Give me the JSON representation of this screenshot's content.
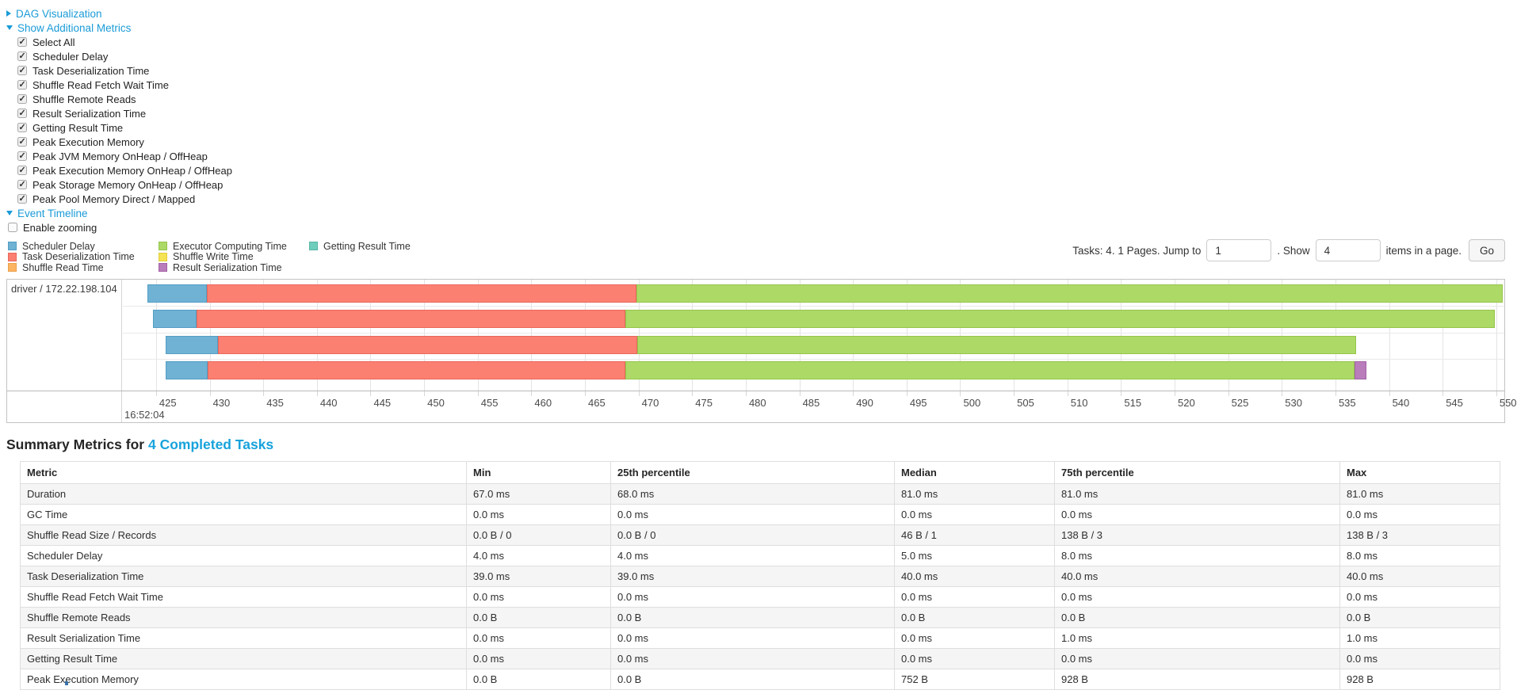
{
  "sections": {
    "dag_label": "DAG Visualization",
    "additional_metrics": {
      "label": "Show Additional Metrics",
      "items": [
        "Select All",
        "Scheduler Delay",
        "Task Deserialization Time",
        "Shuffle Read Fetch Wait Time",
        "Shuffle Remote Reads",
        "Result Serialization Time",
        "Getting Result Time",
        "Peak Execution Memory",
        "Peak JVM Memory OnHeap / OffHeap",
        "Peak Execution Memory OnHeap / OffHeap",
        "Peak Storage Memory OnHeap / OffHeap",
        "Peak Pool Memory Direct / Mapped"
      ],
      "all_checked": true
    },
    "event_timeline_label": "Event Timeline",
    "enable_zooming_label": "Enable zooming",
    "enable_zooming_checked": false
  },
  "pagination": {
    "prefix": "Tasks: 4. 1 Pages. Jump to",
    "jump_value": "1",
    "mid": ". Show",
    "show_value": "4",
    "suffix": "items in a page.",
    "go_label": "Go"
  },
  "chart_data": {
    "type": "timeline",
    "executor_label": "driver / 172.22.198.104",
    "time_of_day_label": "16:52:04",
    "axis": {
      "unit": "ms within second 16:52:04",
      "domain_start": 421.9,
      "domain_end": 550.75,
      "tick_start": 425,
      "tick_end": 550,
      "tick_step": 5,
      "grid": true
    },
    "legend_columns": [
      [
        {
          "key": "scheduler_delay",
          "label": "Scheduler Delay",
          "color": "#6FB2D4",
          "border": "#549DC4"
        },
        {
          "key": "task_deserialization",
          "label": "Task Deserialization Time",
          "color": "#FB8072",
          "border": "#E9675B"
        },
        {
          "key": "shuffle_read",
          "label": "Shuffle Read Time",
          "color": "#FDB462",
          "border": "#ECA04A"
        }
      ],
      [
        {
          "key": "executor_computing",
          "label": "Executor Computing Time",
          "color": "#ADD967",
          "border": "#94C54A"
        },
        {
          "key": "shuffle_write",
          "label": "Shuffle Write Time",
          "color": "#F5E356",
          "border": "#E0CC3E"
        },
        {
          "key": "result_serialization",
          "label": "Result Serialization Time",
          "color": "#BA7DBC",
          "border": "#A261A5"
        }
      ],
      [
        {
          "key": "getting_result",
          "label": "Getting Result Time",
          "color": "#6FCDBC",
          "border": "#56B7A5"
        }
      ]
    ],
    "tasks": [
      {
        "name": "task-row-1",
        "segments": [
          {
            "kind": "scheduler_delay",
            "from": 424.2,
            "to": 429.7
          },
          {
            "kind": "task_deserialization",
            "from": 429.7,
            "to": 469.8
          },
          {
            "kind": "executor_computing",
            "from": 469.8,
            "to": 550.6
          }
        ]
      },
      {
        "name": "task-row-2",
        "segments": [
          {
            "kind": "scheduler_delay",
            "from": 424.7,
            "to": 428.8
          },
          {
            "kind": "task_deserialization",
            "from": 428.8,
            "to": 468.8
          },
          {
            "kind": "executor_computing",
            "from": 468.8,
            "to": 549.9
          }
        ]
      },
      {
        "name": "task-row-3",
        "segments": [
          {
            "kind": "scheduler_delay",
            "from": 425.9,
            "to": 430.8
          },
          {
            "kind": "task_deserialization",
            "from": 430.8,
            "to": 469.9
          },
          {
            "kind": "executor_computing",
            "from": 469.9,
            "to": 536.9
          }
        ]
      },
      {
        "name": "task-row-4",
        "segments": [
          {
            "kind": "scheduler_delay",
            "from": 425.9,
            "to": 429.8
          },
          {
            "kind": "task_deserialization",
            "from": 429.8,
            "to": 468.8
          },
          {
            "kind": "executor_computing",
            "from": 468.8,
            "to": 536.8
          },
          {
            "kind": "result_serialization",
            "from": 536.8,
            "to": 537.9
          }
        ]
      }
    ]
  },
  "summary": {
    "title_prefix": "Summary Metrics for",
    "title_link": "4 Completed Tasks",
    "table": {
      "headers": [
        "Metric",
        "Min",
        "25th percentile",
        "Median",
        "75th percentile",
        "Max"
      ],
      "rows": [
        [
          "Duration",
          "67.0 ms",
          "68.0 ms",
          "81.0 ms",
          "81.0 ms",
          "81.0 ms"
        ],
        [
          "GC Time",
          "0.0 ms",
          "0.0 ms",
          "0.0 ms",
          "0.0 ms",
          "0.0 ms"
        ],
        [
          "Shuffle Read Size / Records",
          "0.0 B / 0",
          "0.0 B / 0",
          "46 B / 1",
          "138 B / 3",
          "138 B / 3"
        ],
        [
          "Scheduler Delay",
          "4.0 ms",
          "4.0 ms",
          "5.0 ms",
          "8.0 ms",
          "8.0 ms"
        ],
        [
          "Task Deserialization Time",
          "39.0 ms",
          "39.0 ms",
          "40.0 ms",
          "40.0 ms",
          "40.0 ms"
        ],
        [
          "Shuffle Read Fetch Wait Time",
          "0.0 ms",
          "0.0 ms",
          "0.0 ms",
          "0.0 ms",
          "0.0 ms"
        ],
        [
          "Shuffle Remote Reads",
          "0.0 B",
          "0.0 B",
          "0.0 B",
          "0.0 B",
          "0.0 B"
        ],
        [
          "Result Serialization Time",
          "0.0 ms",
          "0.0 ms",
          "0.0 ms",
          "1.0 ms",
          "1.0 ms"
        ],
        [
          "Getting Result Time",
          "0.0 ms",
          "0.0 ms",
          "0.0 ms",
          "0.0 ms",
          "0.0 ms"
        ],
        [
          "Peak Execution Memory",
          "0.0 B",
          "0.0 B",
          "752 B",
          "928 B",
          "928 B"
        ]
      ]
    }
  }
}
